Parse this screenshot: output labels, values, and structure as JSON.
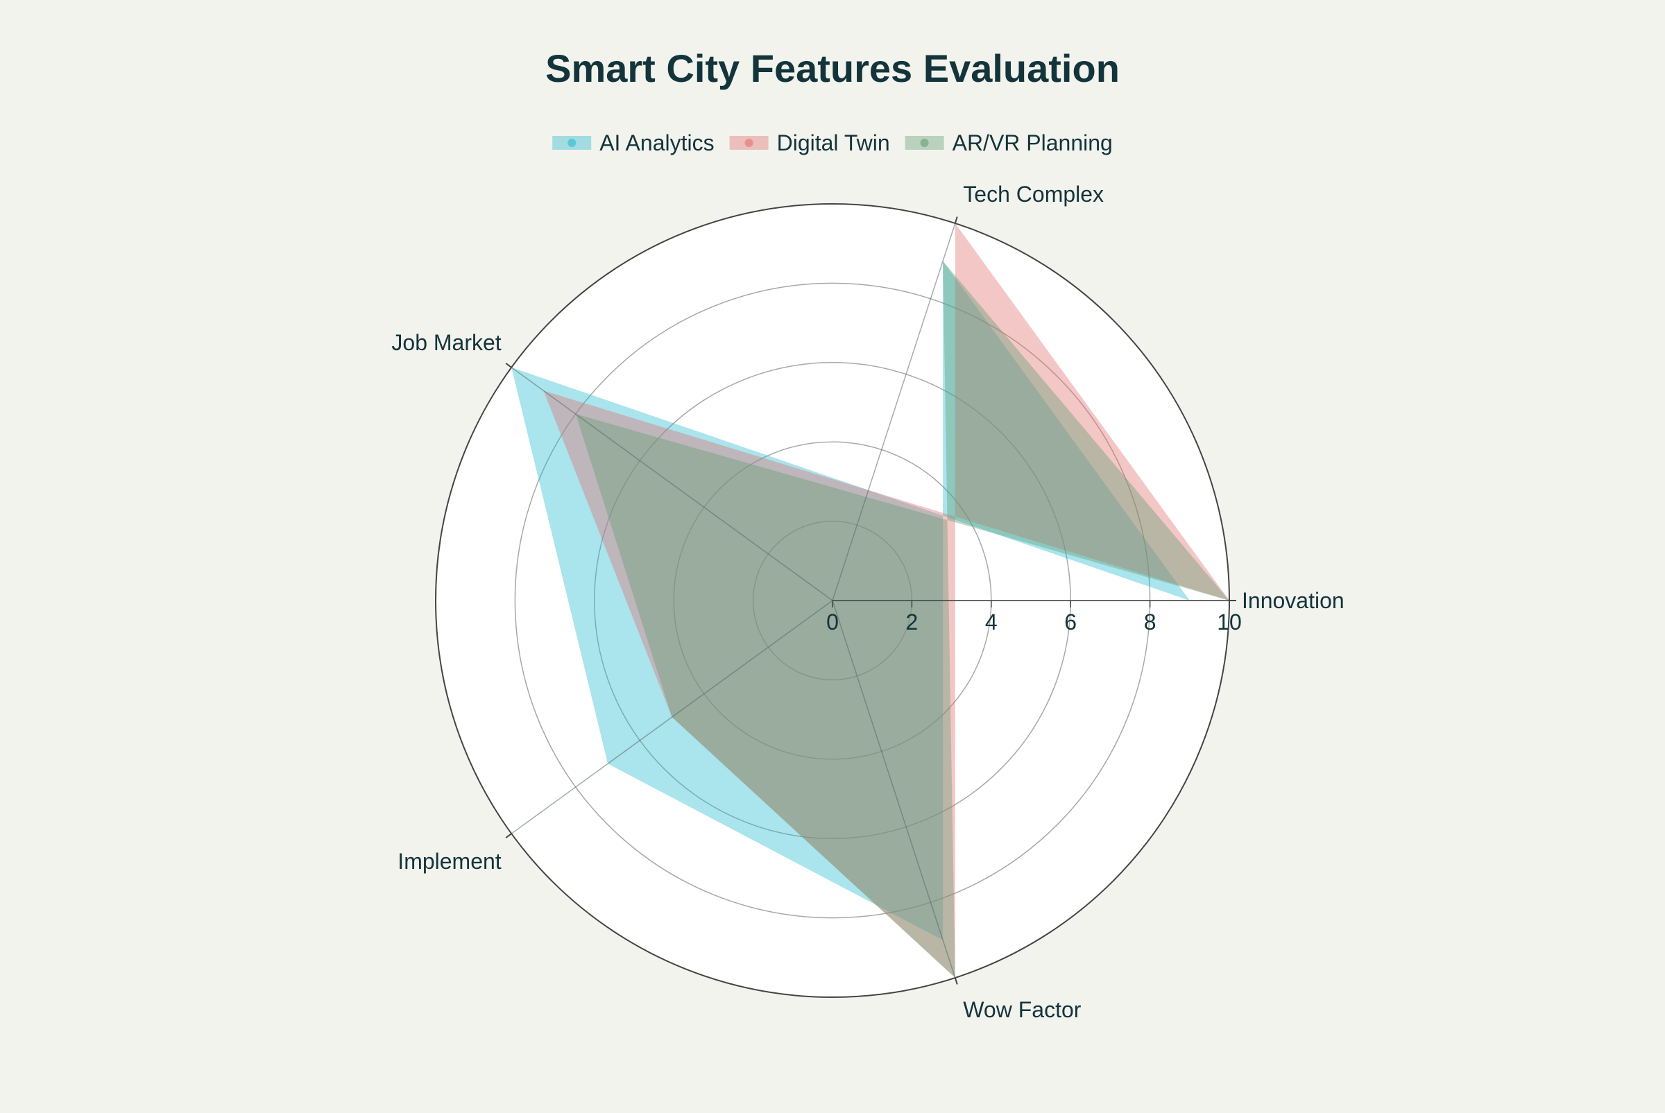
{
  "chart_data": {
    "type": "radar",
    "title": "Smart City Features Evaluation",
    "axes": [
      "Innovation",
      "Tech Complex",
      "Wow Factor",
      "Implement",
      "Job Market"
    ],
    "axis_directions_deg": [
      0,
      72,
      288,
      216,
      144
    ],
    "radial_range": [
      0,
      10
    ],
    "radial_ticks": [
      0,
      2,
      4,
      6,
      8,
      10
    ],
    "grid": true,
    "legend_position": "top-center",
    "series": [
      {
        "name": "AI Analytics",
        "color": "#1fb8cd",
        "values": [
          9,
          9,
          9,
          7,
          10
        ]
      },
      {
        "name": "Digital Twin",
        "color": "#e26b6b",
        "values": [
          10,
          10,
          10,
          5,
          9
        ]
      },
      {
        "name": "AR/VR Planning",
        "color": "#5d9b6f",
        "values": [
          10,
          9,
          10,
          5,
          8
        ]
      }
    ]
  }
}
